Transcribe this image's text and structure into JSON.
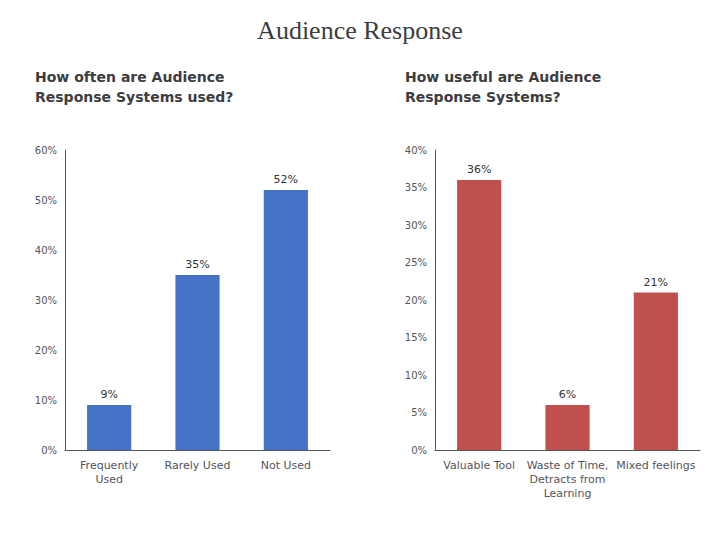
{
  "title": "Audience Response",
  "chart_data": [
    {
      "type": "bar",
      "title": "How often are Audience\nResponse Systems used?",
      "categories": [
        "Frequently\nUsed",
        "Rarely Used",
        "Not Used"
      ],
      "values": [
        9,
        35,
        52
      ],
      "value_labels": [
        "9%",
        "35%",
        "52%"
      ],
      "data_labels": true,
      "color": "#4472c4",
      "ylim": [
        0,
        60
      ],
      "yticks": [
        {
          "value": 0,
          "label": "0%"
        },
        {
          "value": 10,
          "label": "10%"
        },
        {
          "value": 20,
          "label": "20%"
        },
        {
          "value": 30,
          "label": "30%"
        },
        {
          "value": 40,
          "label": "40%"
        },
        {
          "value": 50,
          "label": "50%"
        },
        {
          "value": 60,
          "label": "60%"
        }
      ],
      "grid": false
    },
    {
      "type": "bar",
      "title": "How useful are Audience\nResponse Systems?",
      "categories": [
        "Valuable Tool",
        "Waste of Time,\nDetracts from\nLearning",
        "Mixed feelings"
      ],
      "values": [
        36,
        6,
        21
      ],
      "value_labels": [
        "36%",
        "6%",
        "21%"
      ],
      "data_labels": true,
      "color": "#c0504d",
      "ylim": [
        0,
        40
      ],
      "yticks": [
        {
          "value": 0,
          "label": "0%"
        },
        {
          "value": 5,
          "label": "5%"
        },
        {
          "value": 10,
          "label": "10%"
        },
        {
          "value": 15,
          "label": "15%"
        },
        {
          "value": 20,
          "label": "20%"
        },
        {
          "value": 25,
          "label": "25%"
        },
        {
          "value": 30,
          "label": "30%"
        },
        {
          "value": 35,
          "label": "35%"
        },
        {
          "value": 40,
          "label": "40%"
        }
      ],
      "grid": false
    }
  ]
}
